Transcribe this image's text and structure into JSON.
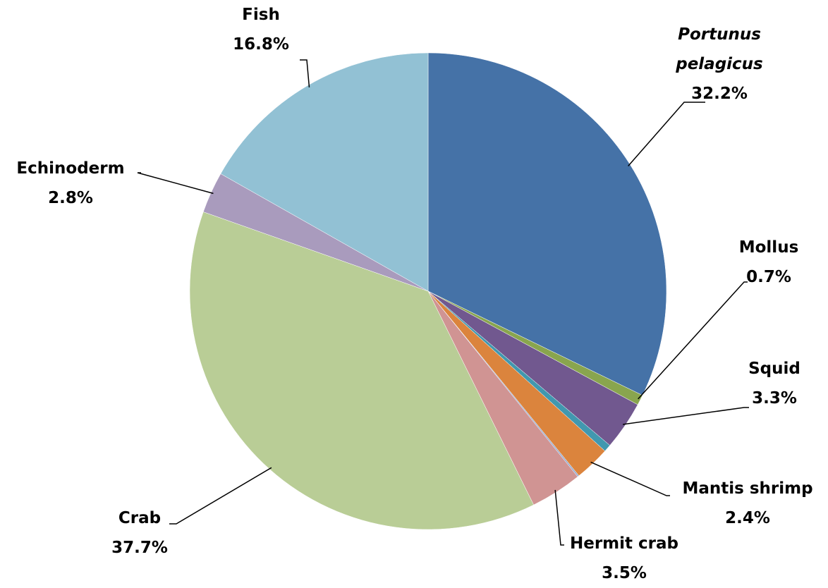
{
  "chart_data": {
    "type": "pie",
    "categories": [
      "Portunus pelagicus",
      "Mollus",
      "Squid",
      null,
      "Mantis shrimp",
      null,
      "Hermit crab",
      "Crab",
      "Echinoderm",
      "Fish"
    ],
    "values": [
      32.2,
      0.7,
      3.3,
      0.5,
      2.4,
      0.1,
      3.5,
      37.7,
      2.8,
      16.8
    ],
    "value_labels": [
      "32.2%",
      "0.7%",
      "3.3%",
      null,
      "2.4%",
      null,
      "3.5%",
      "37.7%",
      "2.8%",
      "16.8%"
    ],
    "colors": [
      "#4572a7",
      "#89a54e",
      "#71588f",
      "#4198af",
      "#db843d",
      "#93a9cf",
      "#d09493",
      "#b9cd96",
      "#a99bbd",
      "#92c1d4"
    ]
  }
}
